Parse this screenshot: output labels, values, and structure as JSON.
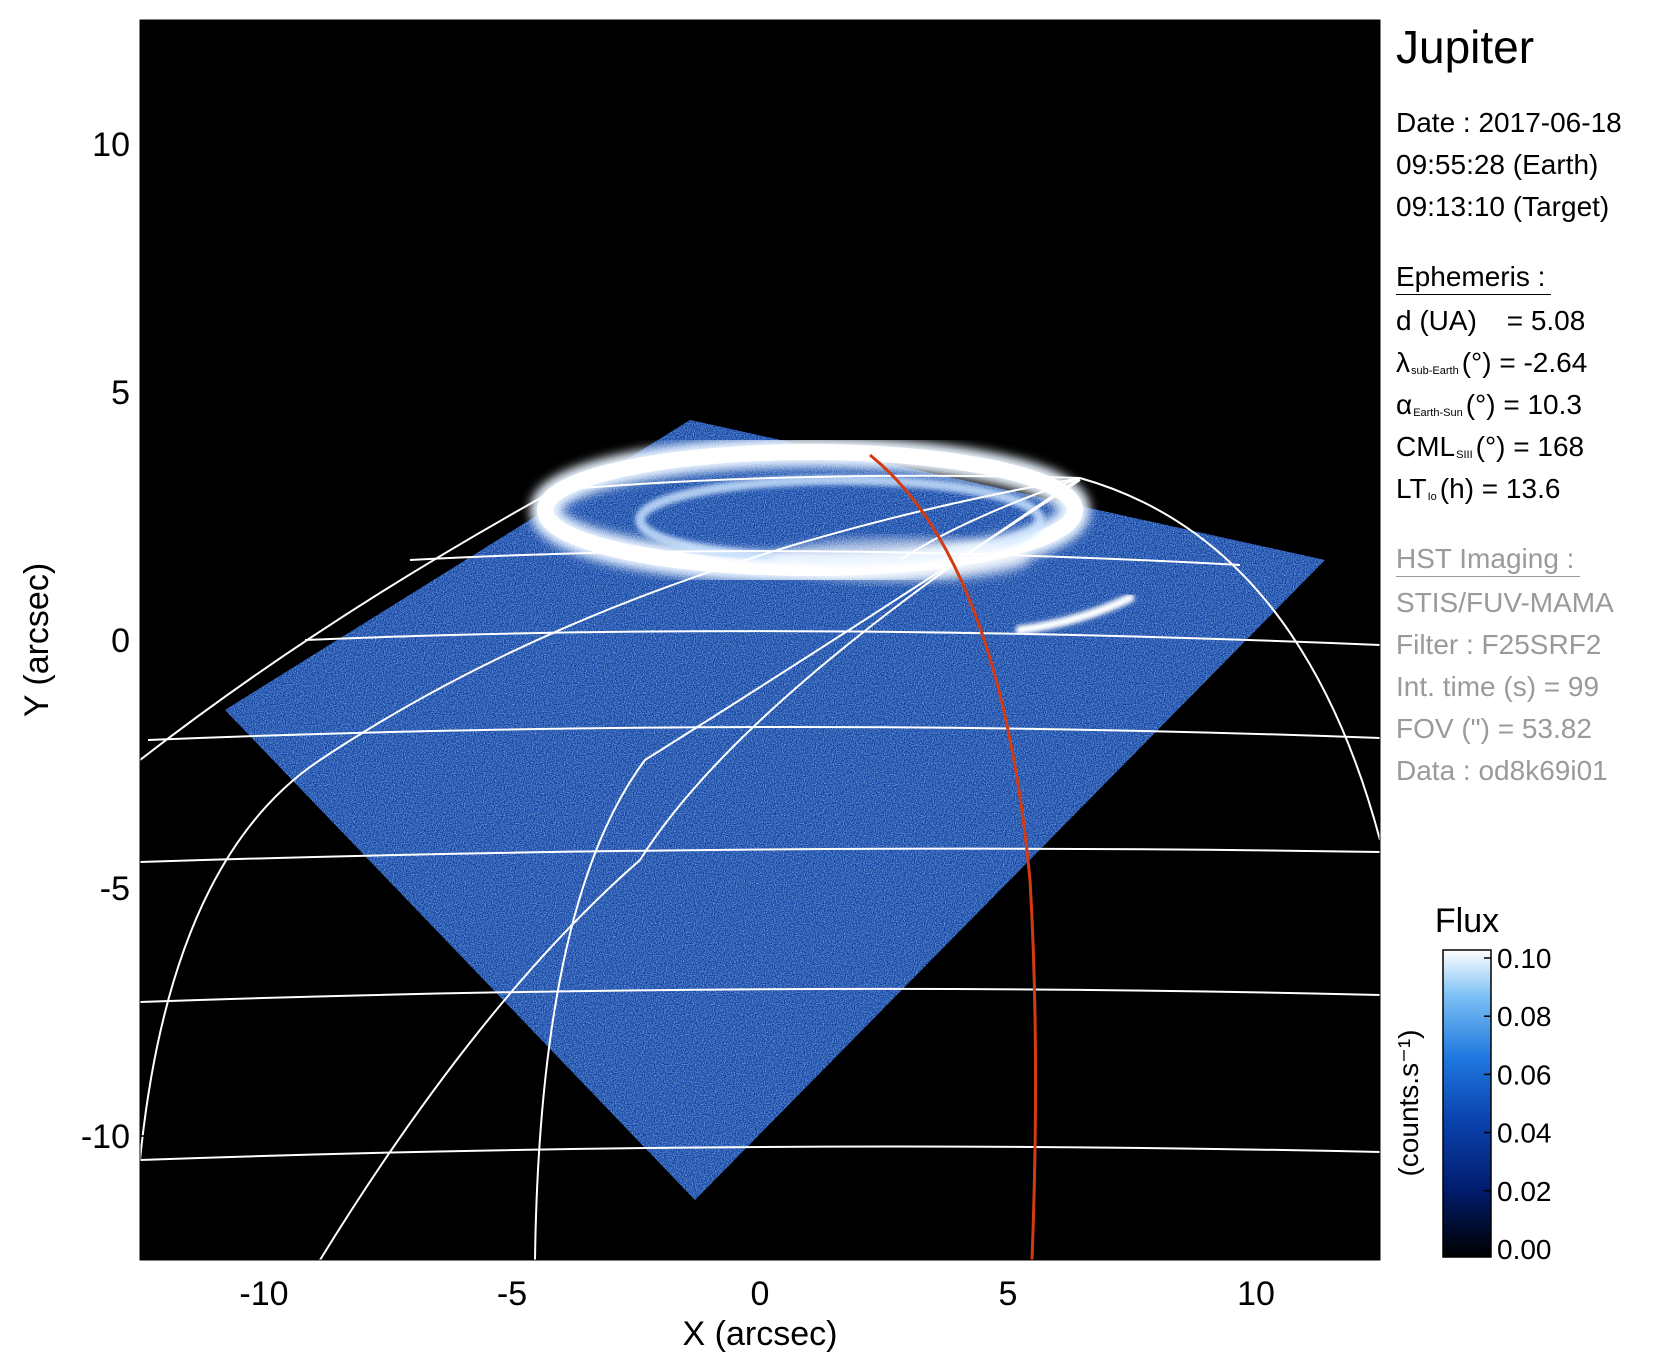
{
  "figure": {
    "title": "Jupiter",
    "date_line": "Date : 2017-06-18",
    "time_earth": "09:55:28 (Earth)",
    "time_target": "09:13:10 (Target)"
  },
  "ephemeris": {
    "heading": "Ephemeris :",
    "d": {
      "label": "d (UA)",
      "value": "= 5.08"
    },
    "lambda": {
      "symbol": "λ",
      "sub": "sub-Earth",
      "unit": "(°) = -2.64"
    },
    "alpha": {
      "symbol": "α",
      "sub": "Earth-Sun",
      "unit": "(°) = 10.3"
    },
    "cml": {
      "symbol": "CML",
      "sub": "SIII",
      "unit": "(°) = 168"
    },
    "lt": {
      "symbol": "LT",
      "sub": "Io",
      "unit": "(h) = 13.6"
    }
  },
  "hst": {
    "heading": "HST Imaging :",
    "instrument": "STIS/FUV-MAMA",
    "filter": "Filter : F25SRF2",
    "int_time": "Int. time (s) = 99",
    "fov": "FOV (\") = 53.82",
    "data": "Data : od8k69i01"
  },
  "chart_data": {
    "type": "heatmap",
    "xlabel": "X (arcsec)",
    "ylabel": "Y (arcsec)",
    "xlim": [
      -12.5,
      12.5
    ],
    "ylim": [
      -12.5,
      12.5
    ],
    "xticks": [
      -10,
      -5,
      0,
      5,
      10
    ],
    "yticks": [
      -10,
      -5,
      0,
      5,
      10
    ],
    "xtick_labels": [
      "-10",
      "-5",
      "0",
      "5",
      "10"
    ],
    "ytick_labels": [
      "-10",
      "-5",
      "0",
      "5",
      "10"
    ],
    "colorbar": {
      "title": "Flux",
      "label": "(counts.s⁻¹)",
      "range": [
        0.0,
        0.1
      ],
      "tick_labels": [
        "0.10",
        "0.08",
        "0.06",
        "0.04",
        "0.02",
        "0.00"
      ]
    },
    "background_color": "#000000",
    "colormap": [
      "#000000",
      "#001a66",
      "#0a3a9c",
      "#1f66d8",
      "#5aa8f0",
      "#ffffff"
    ],
    "grid_color": "#ffffff",
    "footprint_color": "#d43a12"
  }
}
